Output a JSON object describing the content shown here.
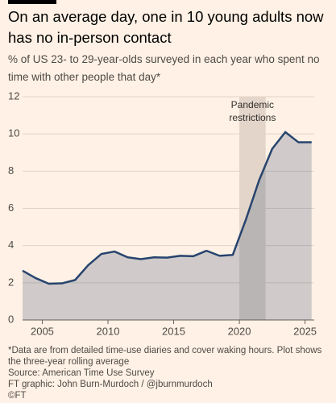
{
  "chart_data": {
    "type": "area",
    "title": "On an average day, one in 10 young adults now has no in-person contact",
    "subtitle": "% of US 23- to 29-year-olds surveyed in each year who spent no time with other people that day*",
    "x": [
      2003.5,
      2004.5,
      2005.5,
      2006.5,
      2007.5,
      2008.5,
      2009.5,
      2010.5,
      2011.5,
      2012.5,
      2013.5,
      2014.5,
      2015.5,
      2016.5,
      2017.5,
      2018.5,
      2019.5,
      2020.5,
      2021.5,
      2022.5,
      2023.5,
      2024.5,
      2025.5
    ],
    "values": [
      2.65,
      2.25,
      1.95,
      1.97,
      2.15,
      2.95,
      3.55,
      3.68,
      3.37,
      3.27,
      3.37,
      3.35,
      3.45,
      3.43,
      3.72,
      3.45,
      3.5,
      5.4,
      7.5,
      9.2,
      10.1,
      9.55,
      9.55
    ],
    "color": "#27446e",
    "xlim": [
      2003.5,
      2025.7
    ],
    "xticks": [
      2005,
      2010,
      2015,
      2020,
      2025
    ],
    "ylim": [
      0,
      12
    ],
    "yticks": [
      0,
      2,
      4,
      6,
      8,
      10,
      12
    ],
    "grid": true,
    "shaded_range": [
      2020,
      2022
    ],
    "annotation": [
      "Pandemic",
      "restrictions"
    ],
    "footnotes": [
      "*Data are from detailed time-use diaries and cover waking hours. Plot shows the three-year rolling average",
      "Source: American Time Use Survey",
      "FT graphic: John Burn-Murdoch / @jburnmurdoch",
      "©FT"
    ]
  }
}
